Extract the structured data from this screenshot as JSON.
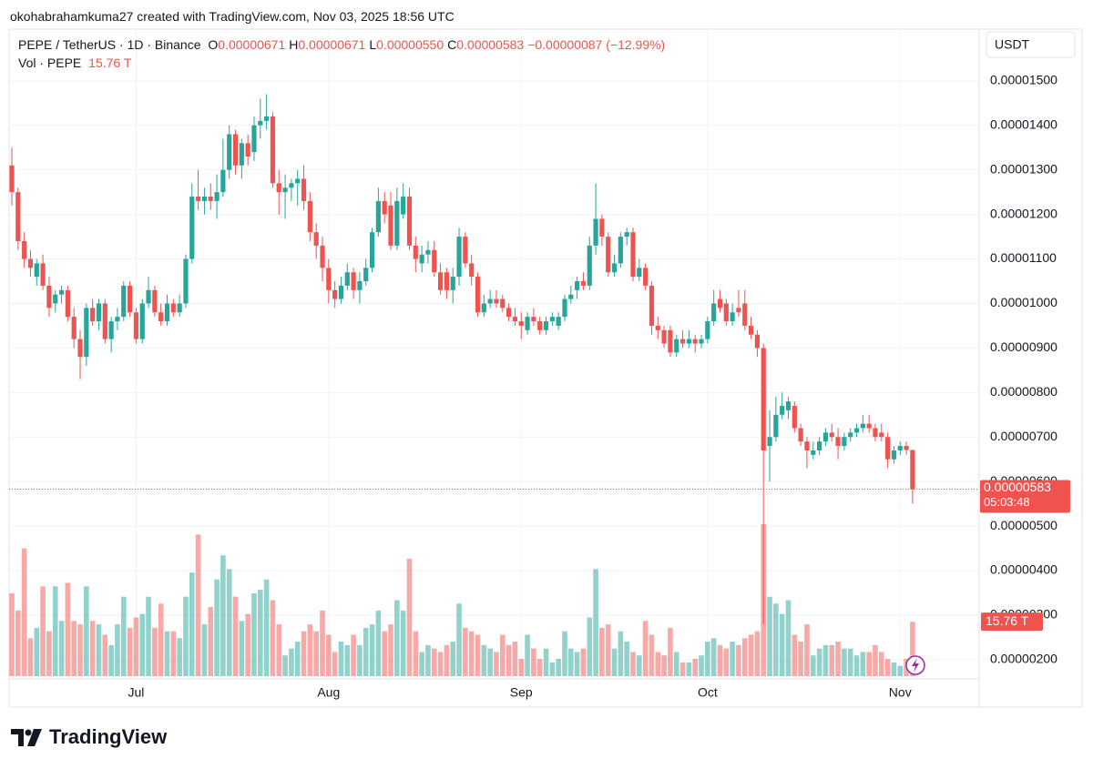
{
  "header": {
    "attribution": "okohabrahamkuma27 created with TradingView.com, Nov 03, 2025 18:56 UTC",
    "symbol": "PEPE / TetherUS · 1D · Binance",
    "ohlc": [
      {
        "key": "O",
        "value": "0.00000671"
      },
      {
        "key": "H",
        "value": "0.00000671"
      },
      {
        "key": "L",
        "value": "0.00000550"
      },
      {
        "key": "C",
        "value": "0.00000583"
      }
    ],
    "change": "−0.00000087 (−12.99%)",
    "volume_name": "Vol · PEPE",
    "volume_value": "15.76 T"
  },
  "logo": "TradingView",
  "chart_data": {
    "type": "candlestick",
    "currency": "USDT",
    "colors": {
      "up": "#26a69a",
      "down": "#ef5350"
    },
    "ylim": [
      1.63e-06,
      1.61e-05
    ],
    "yticks": [
      {
        "value": 1.5e-05,
        "label": "0.00001500"
      },
      {
        "value": 1.4e-05,
        "label": "0.00001400"
      },
      {
        "value": 1.3e-05,
        "label": "0.00001300"
      },
      {
        "value": 1.2e-05,
        "label": "0.00001200"
      },
      {
        "value": 1.1e-05,
        "label": "0.00001100"
      },
      {
        "value": 1e-05,
        "label": "0.00001000"
      },
      {
        "value": 9e-06,
        "label": "0.00000900"
      },
      {
        "value": 8e-06,
        "label": "0.00000800"
      },
      {
        "value": 7e-06,
        "label": "0.00000700"
      },
      {
        "value": 6e-06,
        "label": "0.00000600"
      },
      {
        "value": 5e-06,
        "label": "0.00000500"
      },
      {
        "value": 4e-06,
        "label": "0.00000400"
      },
      {
        "value": 3e-06,
        "label": "0.00000300"
      },
      {
        "value": 2e-06,
        "label": "0.00000200"
      }
    ],
    "xticks": [
      {
        "value": 20,
        "label": "Jul"
      },
      {
        "value": 51,
        "label": "Aug"
      },
      {
        "value": 82,
        "label": "Sep"
      },
      {
        "value": 112,
        "label": "Oct"
      },
      {
        "value": 143,
        "label": "Nov"
      }
    ],
    "grid": true,
    "last_price": 5.83e-06,
    "countdown": "05:03:48",
    "ohlc": [
      [
        1.31e-05,
        1.35e-05,
        1.22e-05,
        1.25e-05
      ],
      [
        1.25e-05,
        1.26e-05,
        1.12e-05,
        1.14e-05
      ],
      [
        1.14e-05,
        1.16e-05,
        1.08e-05,
        1.1e-05
      ],
      [
        1.1e-05,
        1.12e-05,
        1.06e-05,
        1.08e-05
      ],
      [
        1.06e-05,
        1.1e-05,
        1.04e-05,
        1.09e-05
      ],
      [
        1.09e-05,
        1.11e-05,
        1.03e-05,
        1.04e-05
      ],
      [
        1.04e-05,
        1.06e-05,
        9.7e-06,
        9.9e-06
      ],
      [
        1e-05,
        1.03e-05,
        9.8e-06,
        1.02e-05
      ],
      [
        1.02e-05,
        1.04e-05,
        1e-05,
        1.03e-05
      ],
      [
        1.03e-05,
        1.04e-05,
        9.6e-06,
        9.7e-06
      ],
      [
        9.7e-06,
        9.9e-06,
        9e-06,
        9.2e-06
      ],
      [
        9.2e-06,
        9.4e-06,
        8.3e-06,
        8.8e-06
      ],
      [
        8.8e-06,
        1e-05,
        8.6e-06,
        9.9e-06
      ],
      [
        9.9e-06,
        1.01e-05,
        9.5e-06,
        9.6e-06
      ],
      [
        9.6e-06,
        1.01e-05,
        9.4e-06,
        1e-05
      ],
      [
        1e-05,
        1.01e-05,
        9.1e-06,
        9.2e-06
      ],
      [
        9.2e-06,
        9.7e-06,
        8.9e-06,
        9.6e-06
      ],
      [
        9.6e-06,
        9.9e-06,
        9.4e-06,
        9.7e-06
      ],
      [
        9.7e-06,
        1.05e-05,
        9.6e-06,
        1.04e-05
      ],
      [
        1.04e-05,
        1.05e-05,
        9.7e-06,
        9.8e-06
      ],
      [
        9.8e-06,
        9.9e-06,
        9.1e-06,
        9.2e-06
      ],
      [
        9.2e-06,
        1.01e-05,
        9.1e-06,
        1e-05
      ],
      [
        1e-05,
        1.06e-05,
        9.9e-06,
        1.03e-05
      ],
      [
        1.03e-05,
        1.04e-05,
        9.7e-06,
        9.8e-06
      ],
      [
        9.8e-06,
        1e-05,
        9.5e-06,
        9.6e-06
      ],
      [
        9.6e-06,
        1.02e-05,
        9.5e-06,
        1e-05
      ],
      [
        1e-05,
        1.01e-05,
        9.7e-06,
        9.8e-06
      ],
      [
        9.8e-06,
        1.02e-05,
        9.7e-06,
        1e-05
      ],
      [
        1e-05,
        1.11e-05,
        9.9e-06,
        1.1e-05
      ],
      [
        1.1e-05,
        1.27e-05,
        1.09e-05,
        1.24e-05
      ],
      [
        1.24e-05,
        1.3e-05,
        1.21e-05,
        1.23e-05
      ],
      [
        1.23e-05,
        1.26e-05,
        1.2e-05,
        1.24e-05
      ],
      [
        1.24e-05,
        1.27e-05,
        1.21e-05,
        1.23e-05
      ],
      [
        1.23e-05,
        1.29e-05,
        1.19e-05,
        1.25e-05
      ],
      [
        1.25e-05,
        1.37e-05,
        1.24e-05,
        1.3e-05
      ],
      [
        1.3e-05,
        1.4e-05,
        1.28e-05,
        1.38e-05
      ],
      [
        1.38e-05,
        1.39e-05,
        1.29e-05,
        1.31e-05
      ],
      [
        1.31e-05,
        1.37e-05,
        1.28e-05,
        1.36e-05
      ],
      [
        1.36e-05,
        1.38e-05,
        1.31e-05,
        1.33e-05
      ],
      [
        1.34e-05,
        1.42e-05,
        1.32e-05,
        1.4e-05
      ],
      [
        1.4e-05,
        1.46e-05,
        1.37e-05,
        1.41e-05
      ],
      [
        1.41e-05,
        1.47e-05,
        1.39e-05,
        1.42e-05
      ],
      [
        1.42e-05,
        1.43e-05,
        1.26e-05,
        1.27e-05
      ],
      [
        1.27e-05,
        1.3e-05,
        1.2e-05,
        1.25e-05
      ],
      [
        1.25e-05,
        1.29e-05,
        1.19e-05,
        1.26e-05
      ],
      [
        1.26e-05,
        1.28e-05,
        1.23e-05,
        1.27e-05
      ],
      [
        1.27e-05,
        1.3e-05,
        1.22e-05,
        1.28e-05
      ],
      [
        1.28e-05,
        1.31e-05,
        1.21e-05,
        1.23e-05
      ],
      [
        1.23e-05,
        1.25e-05,
        1.14e-05,
        1.16e-05
      ],
      [
        1.16e-05,
        1.18e-05,
        1.1e-05,
        1.13e-05
      ],
      [
        1.13e-05,
        1.15e-05,
        1.05e-05,
        1.08e-05
      ],
      [
        1.08e-05,
        1.1e-05,
        1e-05,
        1.03e-05
      ],
      [
        1.03e-05,
        1.05e-05,
        9.9e-06,
        1.01e-05
      ],
      [
        1.01e-05,
        1.06e-05,
        1e-05,
        1.04e-05
      ],
      [
        1.04e-05,
        1.09e-05,
        1.03e-05,
        1.07e-05
      ],
      [
        1.07e-05,
        1.08e-05,
        1.01e-05,
        1.03e-05
      ],
      [
        1.03e-05,
        1.07e-05,
        1e-05,
        1.05e-05
      ],
      [
        1.05e-05,
        1.1e-05,
        1.04e-05,
        1.08e-05
      ],
      [
        1.08e-05,
        1.17e-05,
        1.07e-05,
        1.16e-05
      ],
      [
        1.16e-05,
        1.26e-05,
        1.15e-05,
        1.23e-05
      ],
      [
        1.23e-05,
        1.25e-05,
        1.18e-05,
        1.2e-05
      ],
      [
        1.22e-05,
        1.25e-05,
        1.12e-05,
        1.13e-05
      ],
      [
        1.13e-05,
        1.26e-05,
        1.12e-05,
        1.23e-05
      ],
      [
        1.2e-05,
        1.27e-05,
        1.19e-05,
        1.24e-05
      ],
      [
        1.24e-05,
        1.26e-05,
        1.12e-05,
        1.13e-05
      ],
      [
        1.13e-05,
        1.15e-05,
        1.07e-05,
        1.1e-05
      ],
      [
        1.09e-05,
        1.13e-05,
        1.07e-05,
        1.11e-05
      ],
      [
        1.11e-05,
        1.14e-05,
        1.09e-05,
        1.12e-05
      ],
      [
        1.12e-05,
        1.14e-05,
        1.06e-05,
        1.07e-05
      ],
      [
        1.07e-05,
        1.09e-05,
        1.02e-05,
        1.03e-05
      ],
      [
        1.07e-05,
        1.08e-05,
        1.01e-05,
        1.03e-05
      ],
      [
        1.03e-05,
        1.08e-05,
        1e-05,
        1.06e-05
      ],
      [
        1.06e-05,
        1.17e-05,
        1.04e-05,
        1.15e-05
      ],
      [
        1.15e-05,
        1.16e-05,
        1.08e-05,
        1.09e-05
      ],
      [
        1.09e-05,
        1.11e-05,
        1.04e-05,
        1.06e-05
      ],
      [
        1.06e-05,
        1.07e-05,
        9.7e-06,
        9.8e-06
      ],
      [
        9.8e-06,
        1.02e-05,
        9.7e-06,
        1e-05
      ],
      [
        1e-05,
        1.03e-05,
        9.9e-06,
        1.01e-05
      ],
      [
        1.01e-05,
        1.03e-05,
        9.9e-06,
        1e-05
      ],
      [
        1.01e-05,
        1.02e-05,
        9.8e-06,
        9.9e-06
      ],
      [
        9.9e-06,
        1e-05,
        9.6e-06,
        9.7e-06
      ],
      [
        9.7e-06,
        9.9e-06,
        9.5e-06,
        9.6e-06
      ],
      [
        9.6e-06,
        9.8e-06,
        9.2e-06,
        9.5e-06
      ],
      [
        9.4e-06,
        9.8e-06,
        9.3e-06,
        9.7e-06
      ],
      [
        9.7e-06,
        9.9e-06,
        9.5e-06,
        9.6e-06
      ],
      [
        9.6e-06,
        9.7e-06,
        9.3e-06,
        9.4e-06
      ],
      [
        9.4e-06,
        9.7e-06,
        9.3e-06,
        9.6e-06
      ],
      [
        9.6e-06,
        9.8e-06,
        9.5e-06,
        9.7e-06
      ],
      [
        9.5e-06,
        9.8e-06,
        9.4e-06,
        9.7e-06
      ],
      [
        9.7e-06,
        1.02e-05,
        9.6e-06,
        1.01e-05
      ],
      [
        1.01e-05,
        1.04e-05,
        1e-05,
        1.02e-05
      ],
      [
        1.03e-05,
        1.06e-05,
        1.01e-05,
        1.05e-05
      ],
      [
        1.05e-05,
        1.07e-05,
        1.03e-05,
        1.04e-05
      ],
      [
        1.04e-05,
        1.15e-05,
        1.03e-05,
        1.13e-05
      ],
      [
        1.13e-05,
        1.27e-05,
        1.11e-05,
        1.19e-05
      ],
      [
        1.19e-05,
        1.2e-05,
        1.13e-05,
        1.15e-05
      ],
      [
        1.15e-05,
        1.16e-05,
        1.06e-05,
        1.07e-05
      ],
      [
        1.07e-05,
        1.11e-05,
        1.06e-05,
        1.09e-05
      ],
      [
        1.09e-05,
        1.16e-05,
        1.08e-05,
        1.15e-05
      ],
      [
        1.15e-05,
        1.17e-05,
        1.13e-05,
        1.16e-05
      ],
      [
        1.16e-05,
        1.17e-05,
        1.05e-05,
        1.06e-05
      ],
      [
        1.06e-05,
        1.1e-05,
        1.05e-05,
        1.08e-05
      ],
      [
        1.08e-05,
        1.09e-05,
        1.03e-05,
        1.04e-05
      ],
      [
        1.04e-05,
        1.05e-05,
        9.3e-06,
        9.5e-06
      ],
      [
        9.5e-06,
        9.7e-06,
        9.2e-06,
        9.4e-06
      ],
      [
        9.4e-06,
        9.5e-06,
        9e-06,
        9.1e-06
      ],
      [
        9.4e-06,
        9.5e-06,
        8.8e-06,
        8.9e-06
      ],
      [
        8.9e-06,
        9.3e-06,
        8.8e-06,
        9.2e-06
      ],
      [
        9.2e-06,
        9.4e-06,
        9e-06,
        9.1e-06
      ],
      [
        9.1e-06,
        9.4e-06,
        9e-06,
        9.2e-06
      ],
      [
        9.2e-06,
        9.3e-06,
        8.9e-06,
        9.1e-06
      ],
      [
        9.1e-06,
        9.3e-06,
        9e-06,
        9.2e-06
      ],
      [
        9.2e-06,
        9.7e-06,
        9.1e-06,
        9.6e-06
      ],
      [
        9.6e-06,
        1.03e-05,
        9.5e-06,
        1e-05
      ],
      [
        1.01e-05,
        1.03e-05,
        9.8e-06,
        9.9e-06
      ],
      [
        1e-05,
        1.01e-05,
        9.5e-06,
        9.6e-06
      ],
      [
        9.6e-06,
        1e-05,
        9.5e-06,
        9.8e-06
      ],
      [
        9.9e-06,
        1.03e-05,
        9.7e-06,
        9.8e-06
      ],
      [
        1e-05,
        1.03e-05,
        9.4e-06,
        9.5e-06
      ],
      [
        9.5e-06,
        9.7e-06,
        9.2e-06,
        9.3e-06
      ],
      [
        9.3e-06,
        9.4e-06,
        8.8e-06,
        9e-06
      ],
      [
        9e-06,
        9.1e-06,
        2.8e-06,
        6.7e-06
      ],
      [
        6.8e-06,
        7.6e-06,
        6e-06,
        7e-06
      ],
      [
        7e-06,
        7.9e-06,
        6.9e-06,
        7.5e-06
      ],
      [
        7.5e-06,
        8e-06,
        7.4e-06,
        7.7e-06
      ],
      [
        7.6e-06,
        7.9e-06,
        7.4e-06,
        7.8e-06
      ],
      [
        7.7e-06,
        7.8e-06,
        7.1e-06,
        7.2e-06
      ],
      [
        7.2e-06,
        7.3e-06,
        6.8e-06,
        6.9e-06
      ],
      [
        6.9e-06,
        7e-06,
        6.3e-06,
        6.7e-06
      ],
      [
        6.6e-06,
        6.9e-06,
        6.5e-06,
        6.7e-06
      ],
      [
        6.7e-06,
        7e-06,
        6.6e-06,
        6.9e-06
      ],
      [
        6.9e-06,
        7.2e-06,
        6.8e-06,
        7.1e-06
      ],
      [
        7.1e-06,
        7.3e-06,
        6.9e-06,
        7e-06
      ],
      [
        7e-06,
        7.2e-06,
        6.5e-06,
        6.8e-06
      ],
      [
        6.8e-06,
        7.1e-06,
        6.7e-06,
        7e-06
      ],
      [
        7e-06,
        7.2e-06,
        6.9e-06,
        7.1e-06
      ],
      [
        7.1e-06,
        7.3e-06,
        7e-06,
        7.2e-06
      ],
      [
        7.2e-06,
        7.5e-06,
        7.1e-06,
        7.3e-06
      ],
      [
        7.3e-06,
        7.5e-06,
        7.1e-06,
        7.2e-06
      ],
      [
        7.2e-06,
        7.3e-06,
        6.9e-06,
        7e-06
      ],
      [
        7.1e-06,
        7.3e-06,
        6.9e-06,
        7e-06
      ],
      [
        7e-06,
        7.1e-06,
        6.3e-06,
        6.5e-06
      ],
      [
        6.5e-06,
        6.8e-06,
        6.4e-06,
        6.7e-06
      ],
      [
        6.7e-06,
        6.9e-06,
        6.6e-06,
        6.8e-06
      ],
      [
        6.8e-06,
        6.9e-06,
        6.6e-06,
        6.71e-06
      ],
      [
        6.71e-06,
        6.71e-06,
        5.5e-06,
        5.83e-06
      ]
    ],
    "volume": {
      "values": [
        24,
        19,
        37,
        11,
        14,
        26,
        13,
        26,
        16,
        27,
        16,
        15,
        26,
        16,
        15,
        12,
        9,
        15,
        23,
        14,
        17,
        18,
        23,
        14,
        21,
        13,
        13,
        11,
        23,
        30,
        41,
        15,
        20,
        28,
        35,
        31,
        23,
        16,
        18,
        24,
        25,
        28,
        22,
        15,
        6,
        8,
        10,
        13,
        15,
        13,
        19,
        12,
        7,
        10,
        9,
        12,
        9,
        14,
        15,
        19,
        13,
        15,
        22,
        19,
        34,
        13,
        7,
        9,
        8,
        7,
        9,
        10,
        21,
        14,
        13,
        12,
        9,
        8,
        7,
        12,
        9,
        10,
        5,
        12,
        8,
        5,
        8,
        4,
        5,
        13,
        8,
        7,
        8,
        17,
        31,
        14,
        15,
        8,
        13,
        10,
        7,
        6,
        16,
        12,
        7,
        6,
        14,
        7,
        4,
        4,
        5,
        6,
        10,
        11,
        9,
        8,
        10,
        9,
        11,
        12,
        13,
        44,
        23,
        21,
        18,
        22,
        12,
        10,
        15,
        6,
        8,
        9,
        9,
        10,
        8,
        8,
        6,
        7,
        7,
        9,
        7,
        5,
        4,
        3,
        5,
        15.76
      ],
      "last_label": "15.76 T"
    }
  }
}
